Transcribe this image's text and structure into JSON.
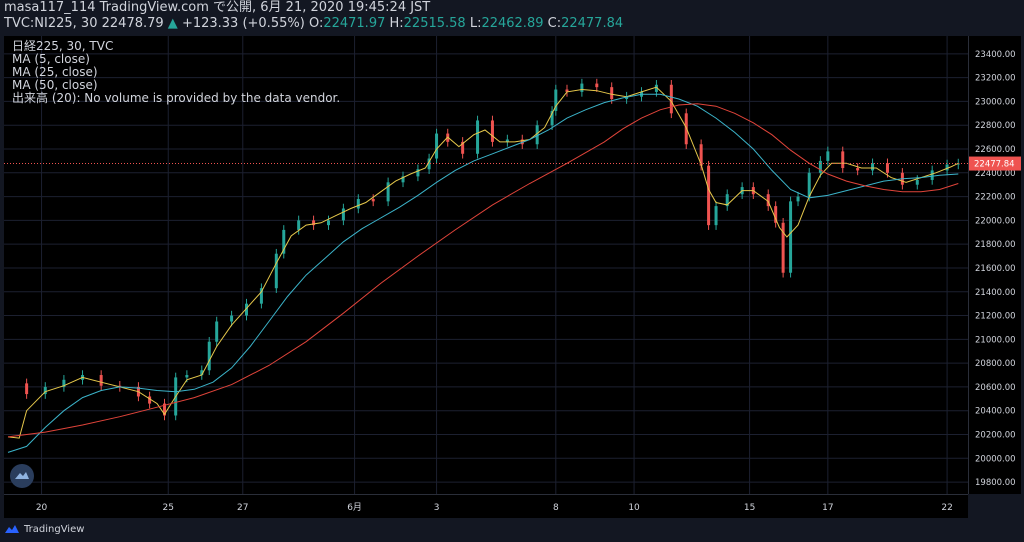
{
  "header": {
    "line1": "masa117_114 TradingView.com で公開, 6月 21, 2020 19:45:24 JST",
    "symbol": "TVC:NI225, 30",
    "price": "22478.79",
    "arrow": "▲",
    "change": "+123.33 (+0.55%)",
    "o_label": "O:",
    "o_val": "22471.97",
    "h_label": "H:",
    "h_val": "22515.58",
    "l_label": "L:",
    "l_val": "22462.89",
    "c_label": "C:",
    "c_val": "22477.84"
  },
  "legend": {
    "title": "日経225, 30, TVC",
    "ma5": "MA (5, close)",
    "ma25": "MA (25, close)",
    "ma50": "MA (50, close)",
    "volume": "出来高 (20): No volume is provided by the data vendor."
  },
  "footer": {
    "brand": "TradingView"
  },
  "colors": {
    "up": "#26a69a",
    "down": "#ef5350",
    "ma5": "#e6c84b",
    "ma25": "#3bb3c9",
    "ma50": "#e0443a",
    "last_price_bg": "#ef5350"
  },
  "chart_data": {
    "type": "line",
    "ylim": [
      19700,
      23550
    ],
    "y_ticks": [
      19800,
      20000,
      20200,
      20400,
      20600,
      20800,
      21000,
      21200,
      21400,
      21600,
      21800,
      22000,
      22200,
      22400,
      22600,
      22800,
      23000,
      23200,
      23400
    ],
    "x_ticks": [
      {
        "label": "20",
        "x": 9
      },
      {
        "label": "25",
        "x": 43
      },
      {
        "label": "27",
        "x": 63
      },
      {
        "label": "6月",
        "x": 93
      },
      {
        "label": "3",
        "x": 115
      },
      {
        "label": "8",
        "x": 147
      },
      {
        "label": "10",
        "x": 168
      },
      {
        "label": "15",
        "x": 199
      },
      {
        "label": "17",
        "x": 220
      },
      {
        "label": "22",
        "x": 252
      }
    ],
    "last_price": 22477.84,
    "series": [
      {
        "name": "close",
        "values": [
          {
            "x": 0,
            "y": 20630
          },
          {
            "x": 5,
            "y": 20540
          },
          {
            "x": 10,
            "y": 20600
          },
          {
            "x": 15,
            "y": 20660
          },
          {
            "x": 20,
            "y": 20700
          },
          {
            "x": 25,
            "y": 20610
          },
          {
            "x": 30,
            "y": 20600
          },
          {
            "x": 35,
            "y": 20520
          },
          {
            "x": 38,
            "y": 20460
          },
          {
            "x": 42,
            "y": 20360
          },
          {
            "x": 45,
            "y": 20680
          },
          {
            "x": 48,
            "y": 20700
          },
          {
            "x": 52,
            "y": 20740
          },
          {
            "x": 54,
            "y": 20980
          },
          {
            "x": 56,
            "y": 21150
          },
          {
            "x": 60,
            "y": 21200
          },
          {
            "x": 64,
            "y": 21300
          },
          {
            "x": 68,
            "y": 21430
          },
          {
            "x": 72,
            "y": 21720
          },
          {
            "x": 74,
            "y": 21920
          },
          {
            "x": 78,
            "y": 22000
          },
          {
            "x": 82,
            "y": 21960
          },
          {
            "x": 86,
            "y": 22000
          },
          {
            "x": 90,
            "y": 22100
          },
          {
            "x": 94,
            "y": 22180
          },
          {
            "x": 98,
            "y": 22160
          },
          {
            "x": 102,
            "y": 22320
          },
          {
            "x": 106,
            "y": 22370
          },
          {
            "x": 110,
            "y": 22430
          },
          {
            "x": 113,
            "y": 22520
          },
          {
            "x": 115,
            "y": 22730
          },
          {
            "x": 118,
            "y": 22660
          },
          {
            "x": 122,
            "y": 22560
          },
          {
            "x": 126,
            "y": 22840
          },
          {
            "x": 130,
            "y": 22660
          },
          {
            "x": 134,
            "y": 22680
          },
          {
            "x": 138,
            "y": 22640
          },
          {
            "x": 142,
            "y": 22800
          },
          {
            "x": 146,
            "y": 22920
          },
          {
            "x": 147,
            "y": 23100
          },
          {
            "x": 150,
            "y": 23080
          },
          {
            "x": 154,
            "y": 23150
          },
          {
            "x": 158,
            "y": 23120
          },
          {
            "x": 162,
            "y": 23020
          },
          {
            "x": 166,
            "y": 23040
          },
          {
            "x": 170,
            "y": 23080
          },
          {
            "x": 174,
            "y": 23140
          },
          {
            "x": 178,
            "y": 22900
          },
          {
            "x": 182,
            "y": 22640
          },
          {
            "x": 186,
            "y": 22460
          },
          {
            "x": 188,
            "y": 21960
          },
          {
            "x": 190,
            "y": 22120
          },
          {
            "x": 193,
            "y": 22220
          },
          {
            "x": 197,
            "y": 22280
          },
          {
            "x": 200,
            "y": 22220
          },
          {
            "x": 204,
            "y": 22120
          },
          {
            "x": 206,
            "y": 21980
          },
          {
            "x": 208,
            "y": 21560
          },
          {
            "x": 210,
            "y": 22160
          },
          {
            "x": 212,
            "y": 22200
          },
          {
            "x": 215,
            "y": 22400
          },
          {
            "x": 218,
            "y": 22500
          },
          {
            "x": 220,
            "y": 22580
          },
          {
            "x": 224,
            "y": 22440
          },
          {
            "x": 228,
            "y": 22420
          },
          {
            "x": 232,
            "y": 22480
          },
          {
            "x": 236,
            "y": 22400
          },
          {
            "x": 240,
            "y": 22300
          },
          {
            "x": 244,
            "y": 22340
          },
          {
            "x": 248,
            "y": 22420
          },
          {
            "x": 252,
            "y": 22470
          },
          {
            "x": 255,
            "y": 22478
          }
        ]
      },
      {
        "name": "MA (5, close)",
        "values": [
          {
            "x": 0,
            "y": 20180
          },
          {
            "x": 3,
            "y": 20170
          },
          {
            "x": 5,
            "y": 20400
          },
          {
            "x": 10,
            "y": 20560
          },
          {
            "x": 15,
            "y": 20610
          },
          {
            "x": 20,
            "y": 20680
          },
          {
            "x": 25,
            "y": 20640
          },
          {
            "x": 30,
            "y": 20600
          },
          {
            "x": 35,
            "y": 20560
          },
          {
            "x": 40,
            "y": 20460
          },
          {
            "x": 42,
            "y": 20370
          },
          {
            "x": 45,
            "y": 20520
          },
          {
            "x": 48,
            "y": 20660
          },
          {
            "x": 52,
            "y": 20700
          },
          {
            "x": 56,
            "y": 20940
          },
          {
            "x": 60,
            "y": 21120
          },
          {
            "x": 64,
            "y": 21260
          },
          {
            "x": 68,
            "y": 21400
          },
          {
            "x": 72,
            "y": 21640
          },
          {
            "x": 76,
            "y": 21870
          },
          {
            "x": 80,
            "y": 21960
          },
          {
            "x": 84,
            "y": 21980
          },
          {
            "x": 88,
            "y": 22040
          },
          {
            "x": 92,
            "y": 22100
          },
          {
            "x": 96,
            "y": 22150
          },
          {
            "x": 100,
            "y": 22240
          },
          {
            "x": 104,
            "y": 22330
          },
          {
            "x": 108,
            "y": 22390
          },
          {
            "x": 112,
            "y": 22440
          },
          {
            "x": 115,
            "y": 22600
          },
          {
            "x": 118,
            "y": 22700
          },
          {
            "x": 121,
            "y": 22620
          },
          {
            "x": 125,
            "y": 22720
          },
          {
            "x": 128,
            "y": 22760
          },
          {
            "x": 132,
            "y": 22660
          },
          {
            "x": 136,
            "y": 22660
          },
          {
            "x": 140,
            "y": 22680
          },
          {
            "x": 144,
            "y": 22780
          },
          {
            "x": 147,
            "y": 22960
          },
          {
            "x": 150,
            "y": 23080
          },
          {
            "x": 154,
            "y": 23100
          },
          {
            "x": 158,
            "y": 23090
          },
          {
            "x": 162,
            "y": 23060
          },
          {
            "x": 166,
            "y": 23040
          },
          {
            "x": 170,
            "y": 23080
          },
          {
            "x": 174,
            "y": 23120
          },
          {
            "x": 178,
            "y": 23000
          },
          {
            "x": 182,
            "y": 22780
          },
          {
            "x": 186,
            "y": 22470
          },
          {
            "x": 188,
            "y": 22260
          },
          {
            "x": 190,
            "y": 22150
          },
          {
            "x": 193,
            "y": 22130
          },
          {
            "x": 197,
            "y": 22250
          },
          {
            "x": 200,
            "y": 22250
          },
          {
            "x": 204,
            "y": 22160
          },
          {
            "x": 207,
            "y": 21940
          },
          {
            "x": 209,
            "y": 21860
          },
          {
            "x": 212,
            "y": 21960
          },
          {
            "x": 215,
            "y": 22200
          },
          {
            "x": 218,
            "y": 22380
          },
          {
            "x": 221,
            "y": 22480
          },
          {
            "x": 225,
            "y": 22480
          },
          {
            "x": 229,
            "y": 22440
          },
          {
            "x": 233,
            "y": 22440
          },
          {
            "x": 237,
            "y": 22360
          },
          {
            "x": 241,
            "y": 22320
          },
          {
            "x": 245,
            "y": 22360
          },
          {
            "x": 249,
            "y": 22400
          },
          {
            "x": 253,
            "y": 22450
          },
          {
            "x": 255,
            "y": 22480
          }
        ]
      },
      {
        "name": "MA (25, close)",
        "values": [
          {
            "x": 0,
            "y": 20050
          },
          {
            "x": 5,
            "y": 20100
          },
          {
            "x": 10,
            "y": 20260
          },
          {
            "x": 15,
            "y": 20400
          },
          {
            "x": 20,
            "y": 20510
          },
          {
            "x": 25,
            "y": 20570
          },
          {
            "x": 30,
            "y": 20600
          },
          {
            "x": 35,
            "y": 20590
          },
          {
            "x": 40,
            "y": 20570
          },
          {
            "x": 45,
            "y": 20560
          },
          {
            "x": 50,
            "y": 20580
          },
          {
            "x": 55,
            "y": 20640
          },
          {
            "x": 60,
            "y": 20760
          },
          {
            "x": 65,
            "y": 20940
          },
          {
            "x": 70,
            "y": 21150
          },
          {
            "x": 75,
            "y": 21360
          },
          {
            "x": 80,
            "y": 21540
          },
          {
            "x": 85,
            "y": 21680
          },
          {
            "x": 90,
            "y": 21820
          },
          {
            "x": 95,
            "y": 21930
          },
          {
            "x": 100,
            "y": 22020
          },
          {
            "x": 105,
            "y": 22110
          },
          {
            "x": 110,
            "y": 22210
          },
          {
            "x": 115,
            "y": 22320
          },
          {
            "x": 120,
            "y": 22420
          },
          {
            "x": 125,
            "y": 22500
          },
          {
            "x": 130,
            "y": 22560
          },
          {
            "x": 135,
            "y": 22620
          },
          {
            "x": 140,
            "y": 22680
          },
          {
            "x": 145,
            "y": 22760
          },
          {
            "x": 150,
            "y": 22860
          },
          {
            "x": 155,
            "y": 22930
          },
          {
            "x": 160,
            "y": 22990
          },
          {
            "x": 165,
            "y": 23030
          },
          {
            "x": 170,
            "y": 23060
          },
          {
            "x": 175,
            "y": 23060
          },
          {
            "x": 180,
            "y": 23020
          },
          {
            "x": 185,
            "y": 22960
          },
          {
            "x": 190,
            "y": 22860
          },
          {
            "x": 195,
            "y": 22740
          },
          {
            "x": 200,
            "y": 22600
          },
          {
            "x": 205,
            "y": 22420
          },
          {
            "x": 210,
            "y": 22260
          },
          {
            "x": 215,
            "y": 22190
          },
          {
            "x": 220,
            "y": 22210
          },
          {
            "x": 225,
            "y": 22250
          },
          {
            "x": 230,
            "y": 22290
          },
          {
            "x": 235,
            "y": 22330
          },
          {
            "x": 240,
            "y": 22350
          },
          {
            "x": 245,
            "y": 22360
          },
          {
            "x": 250,
            "y": 22380
          },
          {
            "x": 255,
            "y": 22390
          }
        ]
      },
      {
        "name": "MA (50, close)",
        "values": [
          {
            "x": 0,
            "y": 20180
          },
          {
            "x": 10,
            "y": 20220
          },
          {
            "x": 20,
            "y": 20280
          },
          {
            "x": 30,
            "y": 20350
          },
          {
            "x": 40,
            "y": 20430
          },
          {
            "x": 50,
            "y": 20510
          },
          {
            "x": 60,
            "y": 20620
          },
          {
            "x": 70,
            "y": 20780
          },
          {
            "x": 80,
            "y": 20980
          },
          {
            "x": 90,
            "y": 21220
          },
          {
            "x": 100,
            "y": 21470
          },
          {
            "x": 110,
            "y": 21700
          },
          {
            "x": 120,
            "y": 21920
          },
          {
            "x": 130,
            "y": 22130
          },
          {
            "x": 140,
            "y": 22310
          },
          {
            "x": 150,
            "y": 22480
          },
          {
            "x": 160,
            "y": 22660
          },
          {
            "x": 165,
            "y": 22770
          },
          {
            "x": 170,
            "y": 22860
          },
          {
            "x": 175,
            "y": 22930
          },
          {
            "x": 180,
            "y": 22970
          },
          {
            "x": 185,
            "y": 22980
          },
          {
            "x": 190,
            "y": 22960
          },
          {
            "x": 195,
            "y": 22900
          },
          {
            "x": 200,
            "y": 22820
          },
          {
            "x": 205,
            "y": 22720
          },
          {
            "x": 210,
            "y": 22590
          },
          {
            "x": 215,
            "y": 22480
          },
          {
            "x": 220,
            "y": 22390
          },
          {
            "x": 225,
            "y": 22330
          },
          {
            "x": 230,
            "y": 22290
          },
          {
            "x": 235,
            "y": 22260
          },
          {
            "x": 240,
            "y": 22240
          },
          {
            "x": 245,
            "y": 22240
          },
          {
            "x": 250,
            "y": 22260
          },
          {
            "x": 255,
            "y": 22310
          }
        ]
      }
    ]
  }
}
